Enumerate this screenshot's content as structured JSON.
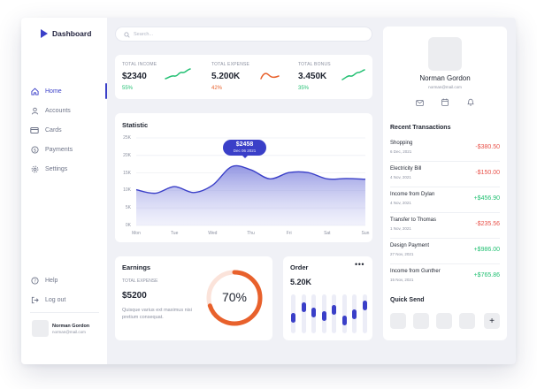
{
  "brand": {
    "name": "Dashboard",
    "color": "#3a3fc8"
  },
  "search": {
    "placeholder": "Search..."
  },
  "sidebar": {
    "items": [
      {
        "label": "Home",
        "icon": "home-icon",
        "active": true
      },
      {
        "label": "Accounts",
        "icon": "user-icon",
        "active": false
      },
      {
        "label": "Cards",
        "icon": "card-icon",
        "active": false
      },
      {
        "label": "Payments",
        "icon": "dollar-icon",
        "active": false
      },
      {
        "label": "Settings",
        "icon": "gear-icon",
        "active": false
      }
    ],
    "bottom": [
      {
        "label": "Help",
        "icon": "help-icon"
      },
      {
        "label": "Log out",
        "icon": "logout-icon"
      }
    ],
    "user": {
      "name": "Norman Gordon",
      "email": "norman@mail.com"
    }
  },
  "stats": [
    {
      "label": "TOTAL INCOME",
      "value": "$2340",
      "change": "55%",
      "trend": "up",
      "color": "#23c073"
    },
    {
      "label": "TOTAL EXPENSE",
      "value": "5.200K",
      "change": "42%",
      "trend": "down",
      "color": "#e8612c"
    },
    {
      "label": "TOTAL BONUS",
      "value": "3.450K",
      "change": "35%",
      "trend": "up",
      "color": "#23c073"
    }
  ],
  "statistic": {
    "title": "Statistic",
    "tooltip": {
      "value": "$2458",
      "date": "Dec 06 2021"
    }
  },
  "chart_data": {
    "type": "area",
    "title": "Statistic",
    "categories": [
      "Mon",
      "Tue",
      "Wed",
      "Thu",
      "Fri",
      "Sat",
      "Sun"
    ],
    "y_ticks": [
      "25K",
      "20K",
      "15K",
      "10K",
      "5K",
      "0K"
    ],
    "ylim": [
      0,
      25000
    ],
    "x": [
      0,
      0.5,
      1,
      1.5,
      2,
      2.5,
      3,
      3.5,
      4,
      4.5,
      5,
      5.5,
      6
    ],
    "values": [
      10200,
      9200,
      11100,
      9400,
      11500,
      16800,
      15900,
      13300,
      15100,
      15100,
      13300,
      13400,
      13200
    ],
    "color": "#3a3fc8",
    "grid": true
  },
  "earnings": {
    "title": "Earnings",
    "label": "TOTAL EXPENSE",
    "value": "$5200",
    "description": "Quisque varius ext maximus nisi pretium consequat.",
    "percent": 70,
    "percent_label": "70%",
    "color": "#e8612c"
  },
  "order": {
    "title": "Order",
    "more_label": "•••",
    "value": "5.20K",
    "bars": [
      0.35,
      0.72,
      0.55,
      0.42,
      0.65,
      0.28,
      0.48,
      0.8
    ]
  },
  "profile": {
    "name": "Norman Gordon",
    "email": "norman@mail.com",
    "actions": [
      "mail-icon",
      "calendar-icon",
      "bell-icon"
    ]
  },
  "transactions": {
    "title": "Recent Transactions",
    "items": [
      {
        "name": "Shopping",
        "date": "6 Dec, 2021",
        "amount": "-$380.50",
        "type": "neg"
      },
      {
        "name": "Electricity Bill",
        "date": "4 Nov, 2021",
        "amount": "-$150.00",
        "type": "neg"
      },
      {
        "name": "Income from Dylan",
        "date": "4 Nov, 2021",
        "amount": "+$456.90",
        "type": "pos"
      },
      {
        "name": "Transfer to Thomas",
        "date": "1 Nov, 2021",
        "amount": "-$235.56",
        "type": "neg"
      },
      {
        "name": "Design Payment",
        "date": "27 Nov, 2021",
        "amount": "+$986.00",
        "type": "pos"
      },
      {
        "name": "Income from Gunther",
        "date": "15 Nov, 2021",
        "amount": "+$765.86",
        "type": "pos"
      }
    ]
  },
  "quick_send": {
    "title": "Quick Send",
    "add_label": "+"
  }
}
